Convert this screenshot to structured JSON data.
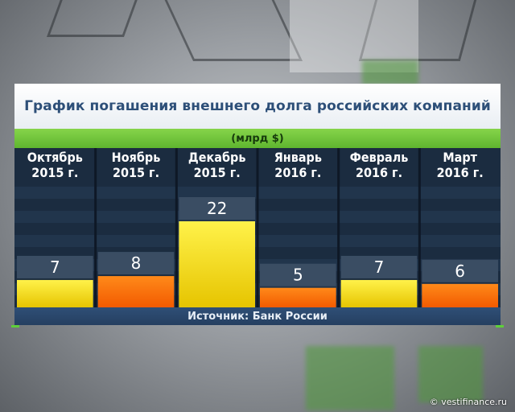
{
  "title": "График погашения внешнего долга российских компаний",
  "unit": "(млрд $)",
  "source": "Источник: Банк России",
  "credit": "© vestifinance.ru",
  "colors": {
    "panel_bg": "#1b2c40",
    "accent_green": "#6cc43a",
    "title_text": "#2d4f78",
    "bar_yellow": "#f2d800",
    "bar_orange": "#ff6a00"
  },
  "chart_data": {
    "type": "bar",
    "categories": [
      "Октябрь\n2015 г.",
      "Ноябрь\n2015 г.",
      "Декабрь\n2015 г.",
      "Январь\n2016 г.",
      "Февраль\n2016 г.",
      "Март\n2016 г."
    ],
    "values": [
      7,
      8,
      22,
      5,
      7,
      6
    ],
    "data_labels": [
      "7",
      "8",
      "22",
      "5",
      "7",
      "6"
    ],
    "bar_colors": [
      "yellow",
      "orange",
      "yellow",
      "orange",
      "yellow",
      "orange"
    ],
    "title": "График погашения внешнего долга российских компаний",
    "ylabel": "(млрд $)",
    "xlabel": "",
    "ylim": [
      0,
      22
    ],
    "grid": false,
    "legend": "none"
  }
}
